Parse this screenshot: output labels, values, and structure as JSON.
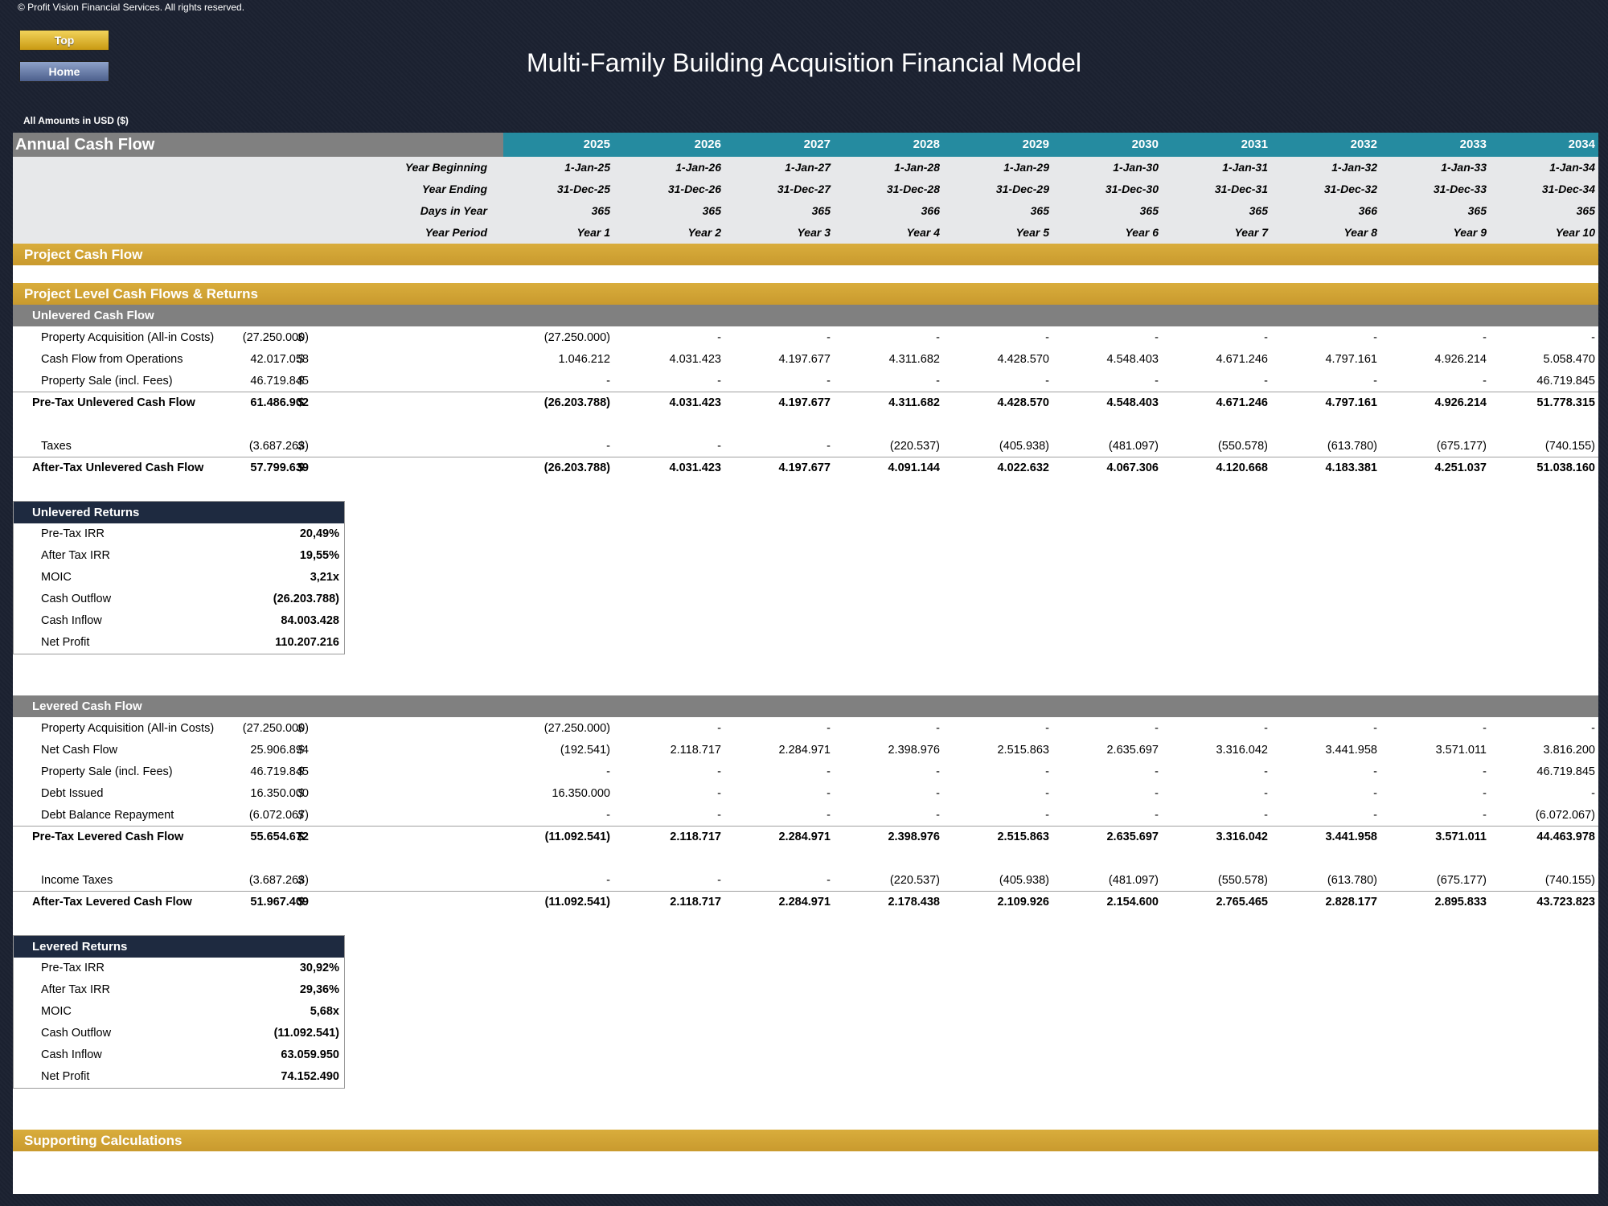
{
  "copyright": "© Profit Vision Financial Services. All rights reserved.",
  "buttons": {
    "top": "Top",
    "home": "Home"
  },
  "title": "Multi-Family Building Acquisition Financial Model",
  "units": "All Amounts in  USD ($)",
  "header": {
    "label": "Annual Cash Flow",
    "years": [
      "2025",
      "2026",
      "2027",
      "2028",
      "2029",
      "2030",
      "2031",
      "2032",
      "2033",
      "2034"
    ]
  },
  "timeline": {
    "year_beginning": {
      "label": "Year Beginning",
      "values": [
        "1-Jan-25",
        "1-Jan-26",
        "1-Jan-27",
        "1-Jan-28",
        "1-Jan-29",
        "1-Jan-30",
        "1-Jan-31",
        "1-Jan-32",
        "1-Jan-33",
        "1-Jan-34"
      ]
    },
    "year_ending": {
      "label": "Year Ending",
      "values": [
        "31-Dec-25",
        "31-Dec-26",
        "31-Dec-27",
        "31-Dec-28",
        "31-Dec-29",
        "31-Dec-30",
        "31-Dec-31",
        "31-Dec-32",
        "31-Dec-33",
        "31-Dec-34"
      ]
    },
    "days": {
      "label": "Days in Year",
      "values": [
        "365",
        "365",
        "365",
        "366",
        "365",
        "365",
        "365",
        "366",
        "365",
        "365"
      ]
    },
    "period": {
      "label": "Year Period",
      "values": [
        "Year 1",
        "Year 2",
        "Year 3",
        "Year 4",
        "Year 5",
        "Year 6",
        "Year 7",
        "Year 8",
        "Year 9",
        "Year 10"
      ]
    }
  },
  "sections": {
    "project_cf": "Project Cash Flow",
    "project_level": "Project Level Cash Flows & Returns",
    "unlevered": "Unlevered Cash Flow",
    "levered": "Levered Cash Flow",
    "supporting": "Supporting Calculations"
  },
  "unlevered_rows": [
    {
      "label": "Property Acquisition (All-in Costs)",
      "cur": "$",
      "total": "(27.250.000)",
      "values": [
        "(27.250.000)",
        "-",
        "-",
        "-",
        "-",
        "-",
        "-",
        "-",
        "-",
        "-"
      ]
    },
    {
      "label": "Cash Flow from Operations",
      "cur": "$",
      "total": "42.017.058",
      "values": [
        "1.046.212",
        "4.031.423",
        "4.197.677",
        "4.311.682",
        "4.428.570",
        "4.548.403",
        "4.671.246",
        "4.797.161",
        "4.926.214",
        "5.058.470"
      ]
    },
    {
      "label": "Property Sale (incl. Fees)",
      "cur": "$",
      "total": "46.719.845",
      "values": [
        "-",
        "-",
        "-",
        "-",
        "-",
        "-",
        "-",
        "-",
        "-",
        "46.719.845"
      ]
    },
    {
      "label": "Pre-Tax Unlevered Cash Flow",
      "cur": "$",
      "total": "61.486.902",
      "values": [
        "(26.203.788)",
        "4.031.423",
        "4.197.677",
        "4.311.682",
        "4.428.570",
        "4.548.403",
        "4.671.246",
        "4.797.161",
        "4.926.214",
        "51.778.315"
      ]
    },
    {
      "label": "Taxes",
      "cur": "$",
      "total": "(3.687.263)",
      "values": [
        "-",
        "-",
        "-",
        "(220.537)",
        "(405.938)",
        "(481.097)",
        "(550.578)",
        "(613.780)",
        "(675.177)",
        "(740.155)"
      ]
    },
    {
      "label": "After-Tax Unlevered Cash Flow",
      "cur": "$",
      "total": "57.799.639",
      "values": [
        "(26.203.788)",
        "4.031.423",
        "4.197.677",
        "4.091.144",
        "4.022.632",
        "4.067.306",
        "4.120.668",
        "4.183.381",
        "4.251.037",
        "51.038.160"
      ]
    }
  ],
  "unlevered_returns": {
    "title": "Unlevered Returns",
    "rows": [
      {
        "label": "Pre-Tax IRR",
        "value": "20,49%"
      },
      {
        "label": "After Tax IRR",
        "value": "19,55%"
      },
      {
        "label": "MOIC",
        "value": "3,21x"
      },
      {
        "label": "Cash Outflow",
        "value": "(26.203.788)"
      },
      {
        "label": "Cash Inflow",
        "value": "84.003.428"
      },
      {
        "label": "Net Profit",
        "value": "110.207.216"
      }
    ]
  },
  "levered_rows": [
    {
      "label": "Property Acquisition (All-in Costs)",
      "cur": "$",
      "total": "(27.250.000)",
      "values": [
        "(27.250.000)",
        "-",
        "-",
        "-",
        "-",
        "-",
        "-",
        "-",
        "-",
        "-"
      ]
    },
    {
      "label": "Net Cash Flow",
      "cur": "$",
      "total": "25.906.894",
      "values": [
        "(192.541)",
        "2.118.717",
        "2.284.971",
        "2.398.976",
        "2.515.863",
        "2.635.697",
        "3.316.042",
        "3.441.958",
        "3.571.011",
        "3.816.200"
      ]
    },
    {
      "label": "Property Sale (incl. Fees)",
      "cur": "$",
      "total": "46.719.845",
      "values": [
        "-",
        "-",
        "-",
        "-",
        "-",
        "-",
        "-",
        "-",
        "-",
        "46.719.845"
      ]
    },
    {
      "label": "Debt Issued",
      "cur": "$",
      "total": "16.350.000",
      "values": [
        "16.350.000",
        "-",
        "-",
        "-",
        "-",
        "-",
        "-",
        "-",
        "-",
        "-"
      ]
    },
    {
      "label": "Debt Balance Repayment",
      "cur": "$",
      "total": "(6.072.067)",
      "values": [
        "-",
        "-",
        "-",
        "-",
        "-",
        "-",
        "-",
        "-",
        "-",
        "(6.072.067)"
      ]
    },
    {
      "label": "Pre-Tax Levered Cash Flow",
      "cur": "$",
      "total": "55.654.672",
      "values": [
        "(11.092.541)",
        "2.118.717",
        "2.284.971",
        "2.398.976",
        "2.515.863",
        "2.635.697",
        "3.316.042",
        "3.441.958",
        "3.571.011",
        "44.463.978"
      ]
    },
    {
      "label": "Income Taxes",
      "cur": "$",
      "total": "(3.687.263)",
      "values": [
        "-",
        "-",
        "-",
        "(220.537)",
        "(405.938)",
        "(481.097)",
        "(550.578)",
        "(613.780)",
        "(675.177)",
        "(740.155)"
      ]
    },
    {
      "label": "After-Tax Levered Cash Flow",
      "cur": "$",
      "total": "51.967.409",
      "values": [
        "(11.092.541)",
        "2.118.717",
        "2.284.971",
        "2.178.438",
        "2.109.926",
        "2.154.600",
        "2.765.465",
        "2.828.177",
        "2.895.833",
        "43.723.823"
      ]
    }
  ],
  "levered_returns": {
    "title": "Levered Returns",
    "rows": [
      {
        "label": "Pre-Tax IRR",
        "value": "30,92%"
      },
      {
        "label": "After Tax IRR",
        "value": "29,36%"
      },
      {
        "label": "MOIC",
        "value": "5,68x"
      },
      {
        "label": "Cash Outflow",
        "value": "(11.092.541)"
      },
      {
        "label": "Cash Inflow",
        "value": "63.059.950"
      },
      {
        "label": "Net Profit",
        "value": "74.152.490"
      }
    ]
  }
}
